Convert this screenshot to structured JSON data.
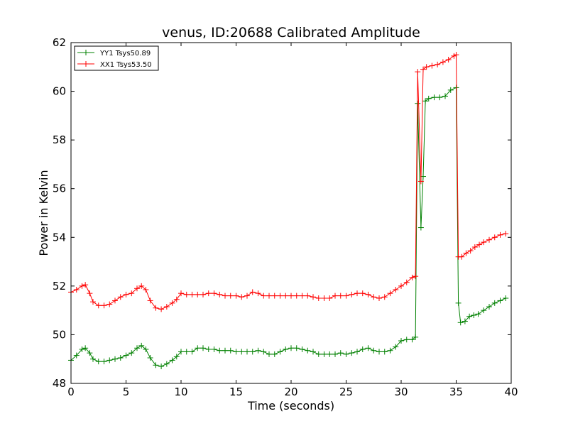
{
  "chart_data": {
    "type": "line",
    "title": "venus, ID:20688 Calibrated Amplitude",
    "xlabel": "Time (seconds)",
    "ylabel": "Power in Kelvin",
    "xlim": [
      0,
      40
    ],
    "ylim": [
      48,
      62
    ],
    "xticks": [
      "0",
      "5",
      "10",
      "15",
      "20",
      "25",
      "30",
      "35",
      "40"
    ],
    "yticks": [
      "48",
      "50",
      "52",
      "54",
      "56",
      "58",
      "60",
      "62"
    ],
    "grid": false,
    "legend_position": "top-left",
    "marker": "plus",
    "series": [
      {
        "name": "YY1 Tsys50.89",
        "color": "#008000",
        "points": [
          [
            0,
            48.95
          ],
          [
            0.5,
            49.15
          ],
          [
            1.0,
            49.4
          ],
          [
            1.3,
            49.45
          ],
          [
            1.7,
            49.25
          ],
          [
            2.0,
            49.0
          ],
          [
            2.5,
            48.9
          ],
          [
            3.0,
            48.9
          ],
          [
            3.5,
            48.95
          ],
          [
            4.0,
            49.0
          ],
          [
            4.5,
            49.05
          ],
          [
            5.0,
            49.15
          ],
          [
            5.5,
            49.25
          ],
          [
            6.0,
            49.45
          ],
          [
            6.4,
            49.55
          ],
          [
            6.8,
            49.4
          ],
          [
            7.2,
            49.05
          ],
          [
            7.7,
            48.75
          ],
          [
            8.2,
            48.7
          ],
          [
            8.7,
            48.8
          ],
          [
            9.2,
            48.95
          ],
          [
            9.6,
            49.1
          ],
          [
            10.0,
            49.3
          ],
          [
            10.5,
            49.3
          ],
          [
            11.0,
            49.3
          ],
          [
            11.5,
            49.45
          ],
          [
            12.0,
            49.45
          ],
          [
            12.5,
            49.4
          ],
          [
            13.0,
            49.4
          ],
          [
            13.5,
            49.35
          ],
          [
            14.0,
            49.35
          ],
          [
            14.5,
            49.35
          ],
          [
            15.0,
            49.3
          ],
          [
            15.5,
            49.3
          ],
          [
            16.0,
            49.3
          ],
          [
            16.5,
            49.3
          ],
          [
            17.0,
            49.35
          ],
          [
            17.5,
            49.3
          ],
          [
            18.0,
            49.2
          ],
          [
            18.5,
            49.2
          ],
          [
            19.0,
            49.3
          ],
          [
            19.5,
            49.4
          ],
          [
            20.0,
            49.45
          ],
          [
            20.5,
            49.45
          ],
          [
            21.0,
            49.4
          ],
          [
            21.5,
            49.35
          ],
          [
            22.0,
            49.3
          ],
          [
            22.5,
            49.2
          ],
          [
            23.0,
            49.2
          ],
          [
            23.5,
            49.2
          ],
          [
            24.0,
            49.2
          ],
          [
            24.5,
            49.25
          ],
          [
            25.0,
            49.2
          ],
          [
            25.5,
            49.25
          ],
          [
            26.0,
            49.3
          ],
          [
            26.5,
            49.4
          ],
          [
            27.0,
            49.45
          ],
          [
            27.5,
            49.35
          ],
          [
            28.0,
            49.3
          ],
          [
            28.5,
            49.3
          ],
          [
            29.0,
            49.35
          ],
          [
            29.5,
            49.5
          ],
          [
            30.0,
            49.75
          ],
          [
            30.5,
            49.8
          ],
          [
            31.0,
            49.8
          ],
          [
            31.3,
            49.9
          ],
          [
            31.5,
            59.5
          ],
          [
            31.8,
            54.4
          ],
          [
            32.0,
            56.5
          ],
          [
            32.2,
            59.6
          ],
          [
            32.5,
            59.7
          ],
          [
            33.0,
            59.75
          ],
          [
            33.5,
            59.75
          ],
          [
            34.0,
            59.8
          ],
          [
            34.5,
            60.05
          ],
          [
            35.0,
            60.15
          ],
          [
            35.2,
            51.3
          ],
          [
            35.4,
            50.5
          ],
          [
            35.8,
            50.55
          ],
          [
            36.2,
            50.75
          ],
          [
            36.6,
            50.8
          ],
          [
            37.0,
            50.85
          ],
          [
            37.5,
            51.0
          ],
          [
            38.0,
            51.15
          ],
          [
            38.5,
            51.3
          ],
          [
            39.0,
            51.4
          ],
          [
            39.5,
            51.5
          ]
        ]
      },
      {
        "name": "XX1 Tsys53.50",
        "color": "#ff0000",
        "points": [
          [
            0,
            51.75
          ],
          [
            0.5,
            51.85
          ],
          [
            1.0,
            52.0
          ],
          [
            1.3,
            52.05
          ],
          [
            1.7,
            51.7
          ],
          [
            2.0,
            51.35
          ],
          [
            2.5,
            51.2
          ],
          [
            3.0,
            51.2
          ],
          [
            3.5,
            51.25
          ],
          [
            4.0,
            51.4
          ],
          [
            4.5,
            51.55
          ],
          [
            5.0,
            51.65
          ],
          [
            5.5,
            51.7
          ],
          [
            6.0,
            51.9
          ],
          [
            6.4,
            52.0
          ],
          [
            6.8,
            51.85
          ],
          [
            7.2,
            51.4
          ],
          [
            7.7,
            51.1
          ],
          [
            8.2,
            51.05
          ],
          [
            8.7,
            51.15
          ],
          [
            9.2,
            51.3
          ],
          [
            9.6,
            51.45
          ],
          [
            10.0,
            51.7
          ],
          [
            10.5,
            51.65
          ],
          [
            11.0,
            51.65
          ],
          [
            11.5,
            51.65
          ],
          [
            12.0,
            51.65
          ],
          [
            12.5,
            51.7
          ],
          [
            13.0,
            51.7
          ],
          [
            13.5,
            51.65
          ],
          [
            14.0,
            51.6
          ],
          [
            14.5,
            51.6
          ],
          [
            15.0,
            51.6
          ],
          [
            15.5,
            51.55
          ],
          [
            16.0,
            51.6
          ],
          [
            16.5,
            51.75
          ],
          [
            17.0,
            51.7
          ],
          [
            17.5,
            51.6
          ],
          [
            18.0,
            51.6
          ],
          [
            18.5,
            51.6
          ],
          [
            19.0,
            51.6
          ],
          [
            19.5,
            51.6
          ],
          [
            20.0,
            51.6
          ],
          [
            20.5,
            51.6
          ],
          [
            21.0,
            51.6
          ],
          [
            21.5,
            51.6
          ],
          [
            22.0,
            51.55
          ],
          [
            22.5,
            51.5
          ],
          [
            23.0,
            51.5
          ],
          [
            23.5,
            51.5
          ],
          [
            24.0,
            51.6
          ],
          [
            24.5,
            51.6
          ],
          [
            25.0,
            51.6
          ],
          [
            25.5,
            51.65
          ],
          [
            26.0,
            51.7
          ],
          [
            26.5,
            51.7
          ],
          [
            27.0,
            51.65
          ],
          [
            27.5,
            51.55
          ],
          [
            28.0,
            51.5
          ],
          [
            28.5,
            51.55
          ],
          [
            29.0,
            51.7
          ],
          [
            29.5,
            51.85
          ],
          [
            30.0,
            52.0
          ],
          [
            30.5,
            52.15
          ],
          [
            31.0,
            52.35
          ],
          [
            31.3,
            52.4
          ],
          [
            31.5,
            60.8
          ],
          [
            31.8,
            56.3
          ],
          [
            32.0,
            60.9
          ],
          [
            32.3,
            61.0
          ],
          [
            32.8,
            61.05
          ],
          [
            33.3,
            61.1
          ],
          [
            33.8,
            61.2
          ],
          [
            34.3,
            61.3
          ],
          [
            34.8,
            61.45
          ],
          [
            35.0,
            61.5
          ],
          [
            35.2,
            53.2
          ],
          [
            35.5,
            53.2
          ],
          [
            35.9,
            53.35
          ],
          [
            36.3,
            53.45
          ],
          [
            36.7,
            53.6
          ],
          [
            37.1,
            53.7
          ],
          [
            37.5,
            53.8
          ],
          [
            38.0,
            53.9
          ],
          [
            38.5,
            54.0
          ],
          [
            39.0,
            54.1
          ],
          [
            39.5,
            54.15
          ]
        ]
      }
    ]
  }
}
